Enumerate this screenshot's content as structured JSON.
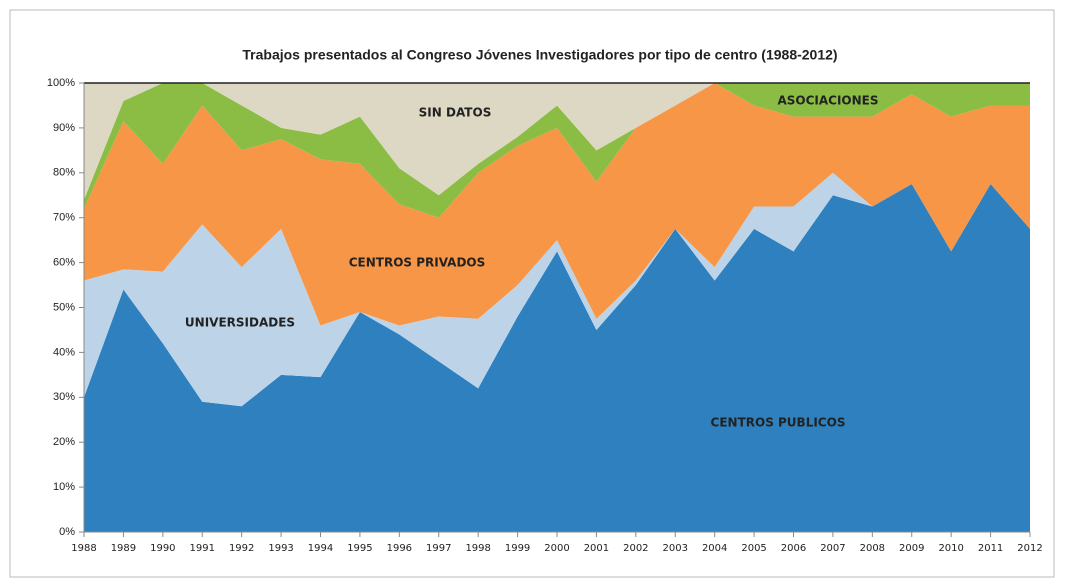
{
  "chart_data": {
    "type": "stacked_area",
    "title": "Trabajos presentados al Congreso Jóvenes Investigadores por tipo de centro (1988-2012)",
    "categories": [
      "1988",
      "1989",
      "1990",
      "1991",
      "1992",
      "1993",
      "1994",
      "1995",
      "1996",
      "1997",
      "1998",
      "1999",
      "2000",
      "2001",
      "2002",
      "2003",
      "2004",
      "2005",
      "2006",
      "2007",
      "2008",
      "2009",
      "2010",
      "2011",
      "2012"
    ],
    "series": [
      {
        "name": "CENTROS PUBLICOS",
        "color": "#2e80bf",
        "values": [
          30,
          54,
          42,
          29,
          28,
          35,
          34.5,
          49,
          44,
          38,
          32,
          48,
          62.5,
          45,
          55,
          67.5,
          56,
          67.5,
          62.5,
          75,
          72.5,
          77.5,
          62.5,
          77.5,
          67.5
        ]
      },
      {
        "name": "UNIVERSIDADES",
        "color": "#bdd4e8",
        "values": [
          26,
          4.5,
          16,
          39.5,
          31,
          32.5,
          11.5,
          0,
          2,
          10,
          15.5,
          7,
          2.5,
          2.5,
          1,
          0,
          3,
          5,
          10,
          5,
          0,
          0,
          0,
          0,
          0
        ]
      },
      {
        "name": "CENTROS PRIVADOS",
        "color": "#f79646",
        "values": [
          16,
          33,
          24,
          26.5,
          26,
          20,
          37,
          33,
          27,
          22,
          32.5,
          31,
          25,
          30.5,
          34,
          27.5,
          41,
          22.5,
          20,
          12.5,
          20,
          20,
          30,
          17.5,
          27.5
        ]
      },
      {
        "name": "ASOCIACIONES",
        "color": "#8bbd44",
        "values": [
          2,
          4.5,
          18,
          5,
          10,
          2.5,
          5.5,
          10.5,
          8,
          5,
          2,
          2,
          5,
          7,
          0,
          0,
          0,
          5,
          7.5,
          7.5,
          7.5,
          2.5,
          7.5,
          5,
          5
        ]
      },
      {
        "name": "SIN DATOS",
        "color": "#ddd8c4",
        "values": [
          26,
          4,
          0,
          0,
          5,
          10,
          11.5,
          7.5,
          19,
          25,
          18,
          12,
          5,
          15,
          10,
          5,
          0,
          0,
          0,
          0,
          0,
          0,
          0,
          0,
          0
        ]
      }
    ],
    "ylim": [
      0,
      100
    ],
    "yticks": [
      {
        "value": 0,
        "label": "0%"
      },
      {
        "value": 10,
        "label": "10%"
      },
      {
        "value": 20,
        "label": "20%"
      },
      {
        "value": 30,
        "label": "30%"
      },
      {
        "value": 40,
        "label": "40%"
      },
      {
        "value": 50,
        "label": "50%"
      },
      {
        "value": 60,
        "label": "60%"
      },
      {
        "value": 70,
        "label": "70%"
      },
      {
        "value": 80,
        "label": "80%"
      },
      {
        "value": 90,
        "label": "90%"
      },
      {
        "value": 100,
        "label": "100%"
      }
    ]
  }
}
